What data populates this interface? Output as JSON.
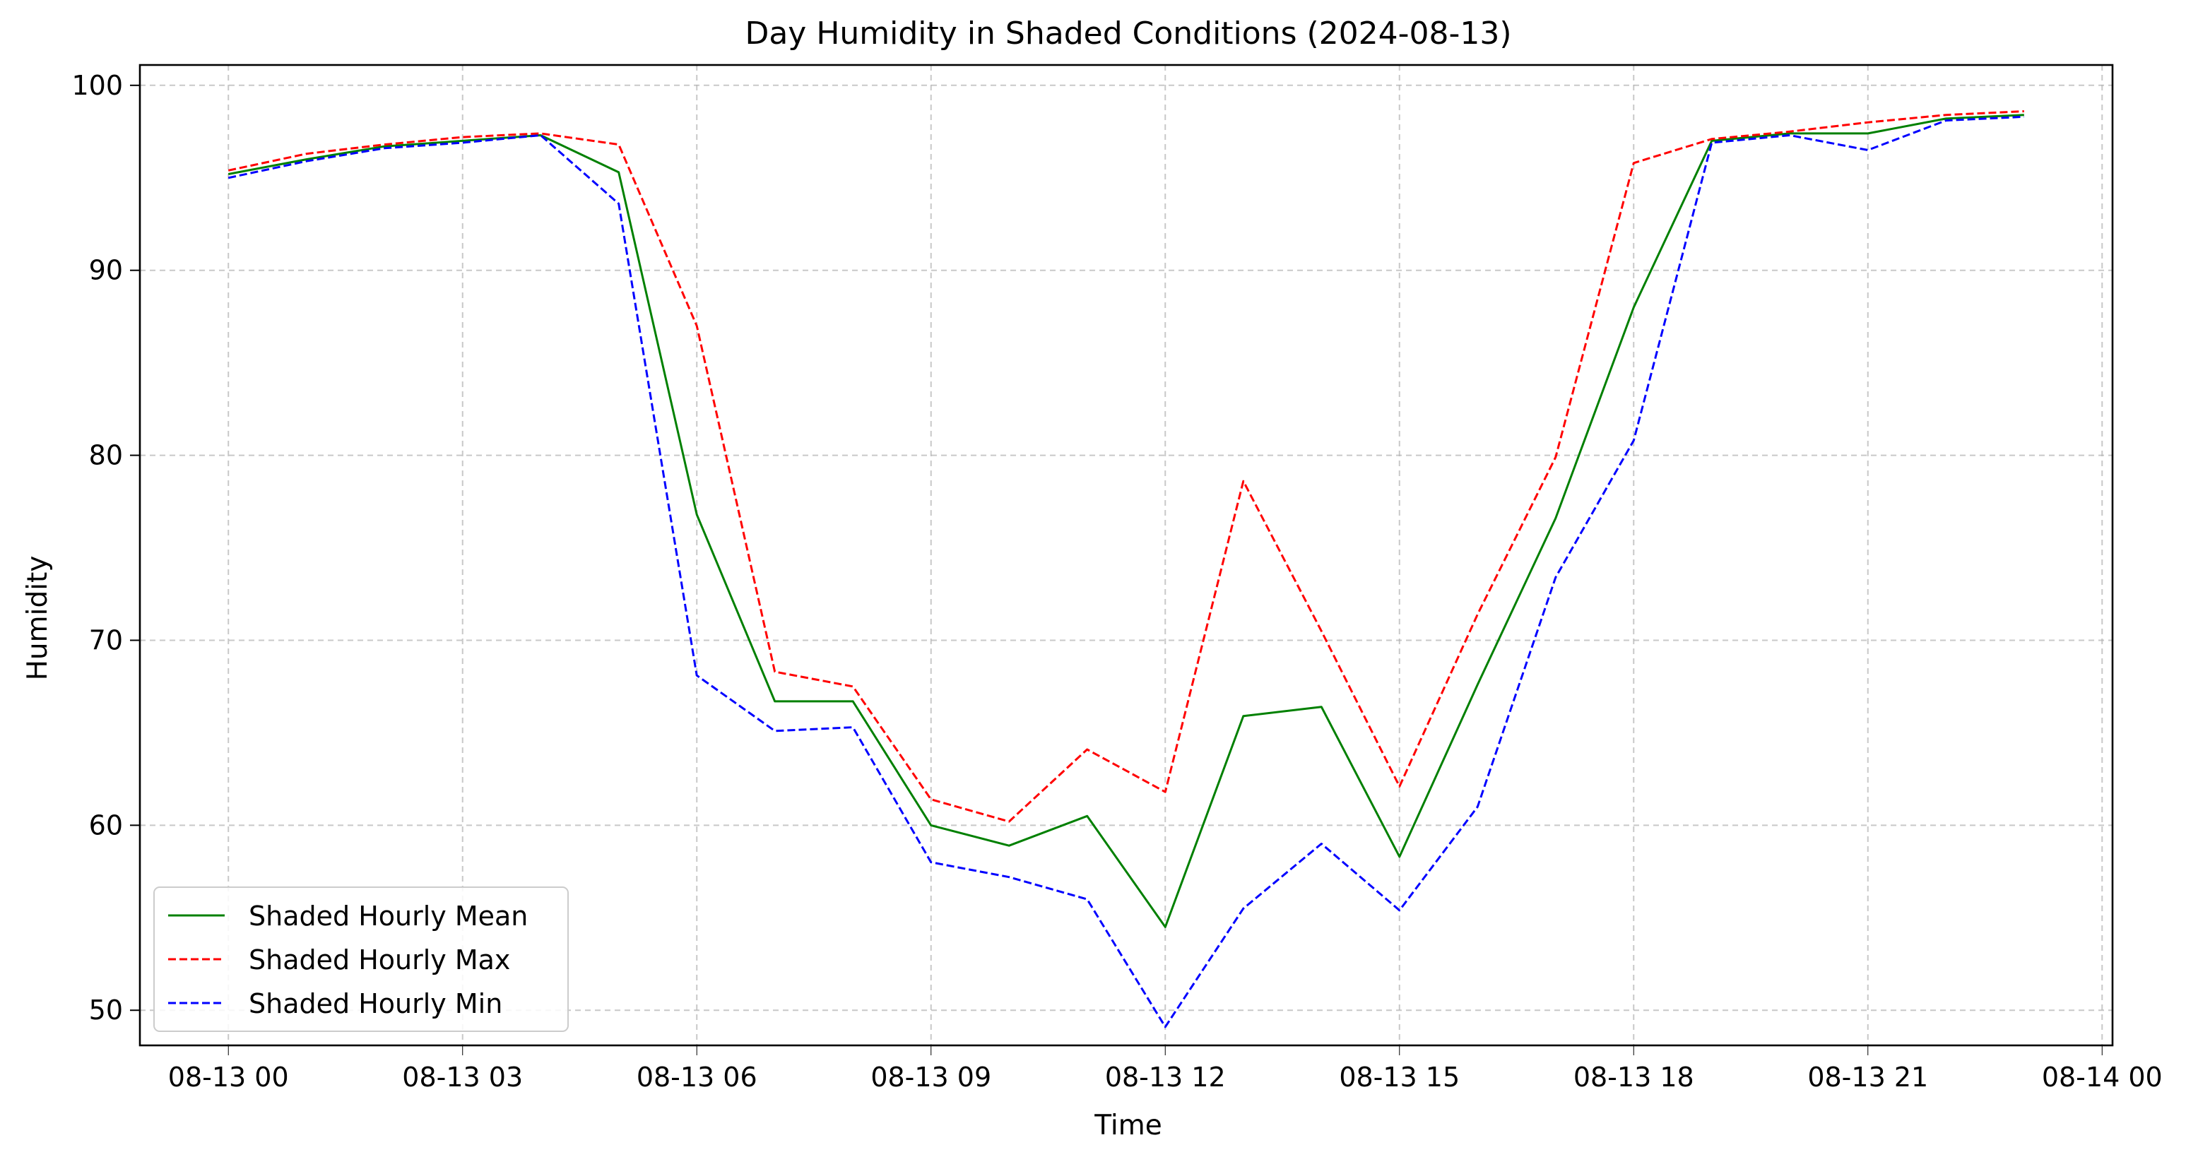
{
  "chart_data": {
    "type": "line",
    "title": "Day Humidity in Shaded Conditions (2024-08-13)",
    "xlabel": "Time",
    "ylabel": "Humidity",
    "x": [
      "2024-08-13 00:00",
      "2024-08-13 01:00",
      "2024-08-13 02:00",
      "2024-08-13 03:00",
      "2024-08-13 04:00",
      "2024-08-13 05:00",
      "2024-08-13 06:00",
      "2024-08-13 07:00",
      "2024-08-13 08:00",
      "2024-08-13 09:00",
      "2024-08-13 10:00",
      "2024-08-13 11:00",
      "2024-08-13 12:00",
      "2024-08-13 13:00",
      "2024-08-13 14:00",
      "2024-08-13 15:00",
      "2024-08-13 16:00",
      "2024-08-13 17:00",
      "2024-08-13 18:00",
      "2024-08-13 19:00",
      "2024-08-13 20:00",
      "2024-08-13 21:00",
      "2024-08-13 22:00",
      "2024-08-13 23:00"
    ],
    "xlim": [
      "2024-08-12 22:52",
      "2024-08-14 00:08"
    ],
    "xticks": [
      "08-13 00",
      "08-13 03",
      "08-13 06",
      "08-13 09",
      "08-13 12",
      "08-13 15",
      "08-13 18",
      "08-13 21",
      "08-14 00"
    ],
    "ylim": [
      48.1,
      101.1
    ],
    "yticks": [
      50,
      60,
      70,
      80,
      90,
      100
    ],
    "grid": true,
    "legend_position": "lower left",
    "series": [
      {
        "name": "Shaded Hourly Mean",
        "color": "#008000",
        "style": "solid",
        "values": [
          95.2,
          96.0,
          96.7,
          97.0,
          97.3,
          95.3,
          76.8,
          66.7,
          66.7,
          60.0,
          58.9,
          60.5,
          54.5,
          65.9,
          66.4,
          58.3,
          67.6,
          76.6,
          88.0,
          97.0,
          97.4,
          97.4,
          98.2,
          98.4
        ]
      },
      {
        "name": "Shaded Hourly Max",
        "color": "#ff0000",
        "style": "dashed",
        "values": [
          95.4,
          96.3,
          96.8,
          97.2,
          97.4,
          96.8,
          87.0,
          68.3,
          67.5,
          61.4,
          60.2,
          64.1,
          61.8,
          78.6,
          70.5,
          62.1,
          71.4,
          79.9,
          95.8,
          97.1,
          97.5,
          98.0,
          98.4,
          98.6
        ]
      },
      {
        "name": "Shaded Hourly Min",
        "color": "#0000ff",
        "style": "dashed",
        "values": [
          95.0,
          95.9,
          96.6,
          96.9,
          97.3,
          93.6,
          68.1,
          65.1,
          65.3,
          58.0,
          57.2,
          56.0,
          49.1,
          55.5,
          59.0,
          55.4,
          61.0,
          73.4,
          80.8,
          96.9,
          97.3,
          96.5,
          98.1,
          98.3
        ]
      }
    ]
  }
}
